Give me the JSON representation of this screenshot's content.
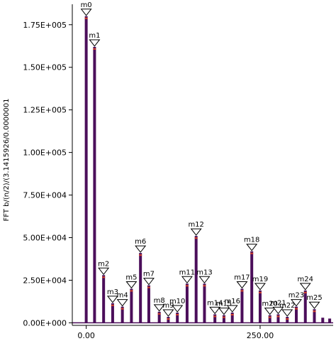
{
  "chart_data": {
    "type": "bar",
    "title": "",
    "xlabel": "",
    "ylabel": "FFT b/(n/2)/(3.1415926/0.0000001",
    "xlim": [
      -20,
      355
    ],
    "ylim": [
      -1500,
      187000
    ],
    "x_ticks": [
      0,
      250
    ],
    "x_tick_labels": [
      "0.00",
      "250.00"
    ],
    "y_ticks": [
      0,
      25000,
      50000,
      75000,
      100000,
      125000,
      150000,
      175000
    ],
    "y_tick_labels": [
      "0.00E+000",
      "2.50E+004",
      "5.00E+004",
      "7.50E+004",
      "1.00E+005",
      "1.25E+005",
      "1.50E+005",
      "1.75E+005"
    ],
    "bar_color": "#4b0e5a",
    "marker_color": "#000000",
    "peaks": [
      {
        "name": "m0",
        "x": 0,
        "y": 180000
      },
      {
        "name": "m1",
        "x": 12,
        "y": 162000
      },
      {
        "name": "m2",
        "x": 25,
        "y": 28000
      },
      {
        "name": "m3",
        "x": 38,
        "y": 11500
      },
      {
        "name": "m4",
        "x": 52,
        "y": 9500
      },
      {
        "name": "m5",
        "x": 65,
        "y": 20000
      },
      {
        "name": "m6",
        "x": 78,
        "y": 41000
      },
      {
        "name": "m7",
        "x": 90,
        "y": 22000
      },
      {
        "name": "m8",
        "x": 105,
        "y": 6500
      },
      {
        "name": "m9",
        "x": 118,
        "y": 3500
      },
      {
        "name": "m10",
        "x": 131,
        "y": 6000
      },
      {
        "name": "m11",
        "x": 145,
        "y": 23000
      },
      {
        "name": "m12",
        "x": 158,
        "y": 51000
      },
      {
        "name": "m13",
        "x": 170,
        "y": 23000
      },
      {
        "name": "m14",
        "x": 185,
        "y": 5000
      },
      {
        "name": "m15",
        "x": 198,
        "y": 4500
      },
      {
        "name": "m16",
        "x": 210,
        "y": 6000
      },
      {
        "name": "m17",
        "x": 224,
        "y": 20000
      },
      {
        "name": "m18",
        "x": 238,
        "y": 42000
      },
      {
        "name": "m19",
        "x": 250,
        "y": 19000
      },
      {
        "name": "m20",
        "x": 264,
        "y": 4500
      },
      {
        "name": "m21",
        "x": 276,
        "y": 5000
      },
      {
        "name": "m22",
        "x": 289,
        "y": 3500
      },
      {
        "name": "m23",
        "x": 302,
        "y": 9500
      },
      {
        "name": "m24",
        "x": 315,
        "y": 19000
      },
      {
        "name": "m25",
        "x": 328,
        "y": 8000
      }
    ],
    "minor_bars": [
      {
        "x": 340,
        "y": 3000
      },
      {
        "x": 350,
        "y": 2500
      }
    ]
  }
}
